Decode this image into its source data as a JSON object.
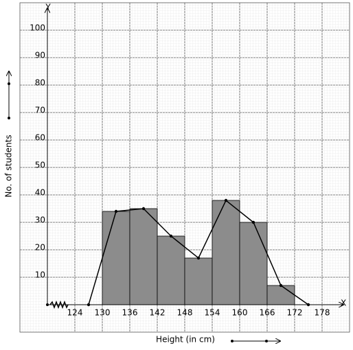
{
  "chart_data": [
    {
      "type": "histogram",
      "x_label": "Height (in cm)",
      "y_label": "No. of students",
      "x_axis_letter": "X",
      "y_axis_letter": "Y",
      "bins": [
        130,
        136,
        142,
        148,
        154,
        160,
        166,
        172
      ],
      "values": [
        34,
        35,
        25,
        17,
        38,
        30,
        7
      ],
      "color": "#8c8c8c",
      "xlim": [
        118,
        181
      ],
      "ylim": [
        0,
        110
      ],
      "xticks": [
        124,
        130,
        136,
        142,
        148,
        154,
        160,
        166,
        172,
        178
      ],
      "yticks": [
        10,
        20,
        30,
        40,
        50,
        60,
        70,
        80,
        90,
        100
      ],
      "grid": true
    },
    {
      "type": "line",
      "x": [
        127,
        133,
        139,
        145,
        151,
        157,
        163,
        169,
        175
      ],
      "values": [
        0,
        34,
        35,
        25,
        17,
        38,
        30,
        7,
        0
      ],
      "color": "#000000"
    }
  ]
}
